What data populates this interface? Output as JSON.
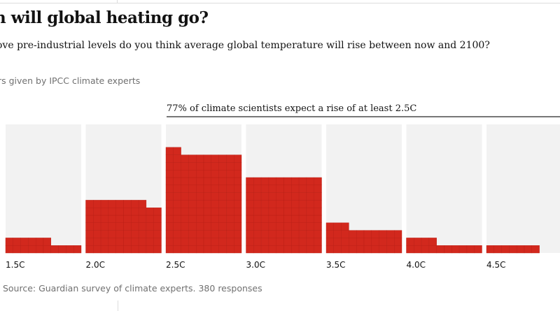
{
  "header": {
    "title": "n will global heating go?",
    "subtitle": "ove pre-industrial levels do you think average global temperature will rise between now and 2100?",
    "note": "rs given by IPCC climate experts"
  },
  "footer": {
    "source": ". Source: Guardian survey of climate experts. 380 responses"
  },
  "colors": {
    "fill": "#d2281d",
    "background": "#f2f2f2"
  },
  "chart_data": {
    "type": "bar",
    "subtype": "waffle",
    "annotation": "77% of climate scientists expect a rise of at least 2.5C",
    "categories": [
      "1.5C",
      "2.0C",
      "2.5C",
      "3.0C",
      "3.5C",
      "4.0C",
      "4.5C"
    ],
    "values": [
      16,
      68,
      132,
      100,
      33,
      14,
      7
    ],
    "units": "responses",
    "cells_per_row": 10
  }
}
